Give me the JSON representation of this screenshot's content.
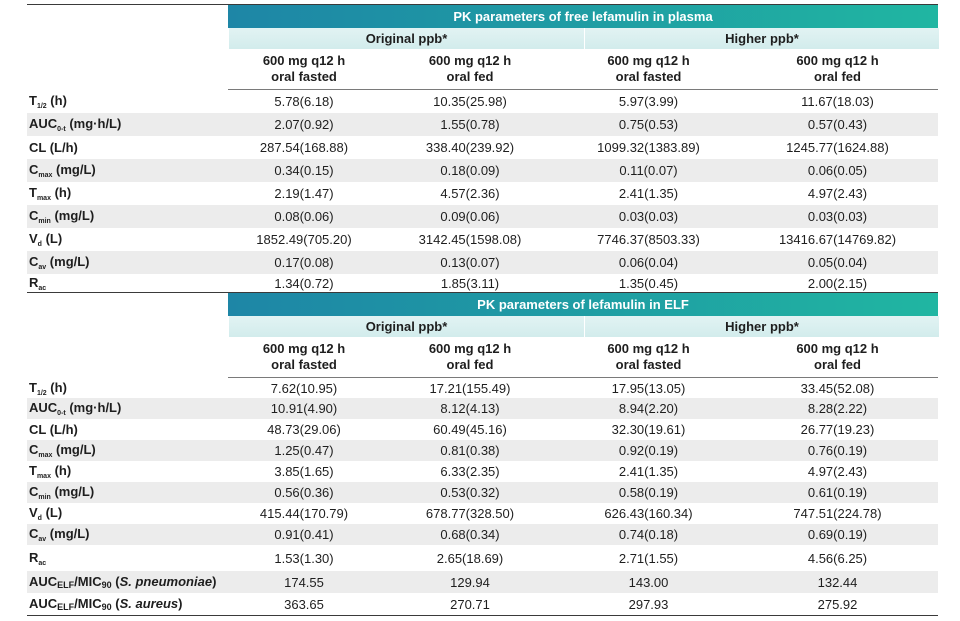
{
  "plasma": {
    "title": "PK parameters of free lefamulin in plasma",
    "group1": "Original ppb*",
    "group2": "Higher ppb*",
    "col1_l1": "600 mg q12 h",
    "col1_l2": "oral fasted",
    "col2_l1": "600 mg q12 h",
    "col2_l2": "oral fed",
    "col3_l1": "600 mg q12 h",
    "col3_l2": "oral fasted",
    "col4_l1": "600 mg q12 h",
    "col4_l2": "oral fed",
    "rows": [
      {
        "base": "T",
        "sub": "1/2",
        "unit": " (h)",
        "vals": [
          "5.78(6.18)",
          "10.35(25.98)",
          "5.97(3.99)",
          "11.67(18.03)"
        ]
      },
      {
        "base": "AUC",
        "sub": "0-t",
        "unit": " (mg·h/L)",
        "vals": [
          "2.07(0.92)",
          "1.55(0.78)",
          "0.75(0.53)",
          "0.57(0.43)"
        ]
      },
      {
        "base": "CL",
        "sub": "",
        "unit": " (L/h)",
        "vals": [
          "287.54(168.88)",
          "338.40(239.92)",
          "1099.32(1383.89)",
          "1245.77(1624.88)"
        ]
      },
      {
        "base": "C",
        "sub": "max",
        "unit": " (mg/L)",
        "vals": [
          "0.34(0.15)",
          "0.18(0.09)",
          "0.11(0.07)",
          "0.06(0.05)"
        ]
      },
      {
        "base": "T",
        "sub": "max",
        "unit": " (h)",
        "vals": [
          "2.19(1.47)",
          "4.57(2.36)",
          "2.41(1.35)",
          "4.97(2.43)"
        ]
      },
      {
        "base": "C",
        "sub": "min",
        "unit": " (mg/L)",
        "vals": [
          "0.08(0.06)",
          "0.09(0.06)",
          "0.03(0.03)",
          "0.03(0.03)"
        ]
      },
      {
        "base": "V",
        "sub": "d",
        "unit": " (L)",
        "vals": [
          "1852.49(705.20)",
          "3142.45(1598.08)",
          "7746.37(8503.33)",
          "13416.67(14769.82)"
        ]
      },
      {
        "base": "C",
        "sub": "av",
        "unit": " (mg/L)",
        "vals": [
          "0.17(0.08)",
          "0.13(0.07)",
          "0.06(0.04)",
          "0.05(0.04)"
        ]
      },
      {
        "base": "R",
        "sub": "ac",
        "unit": "",
        "vals": [
          "1.34(0.72)",
          "1.85(3.11)",
          "1.35(0.45)",
          "2.00(2.15)"
        ]
      }
    ]
  },
  "elf": {
    "title": "PK parameters of lefamulin in ELF",
    "group1": "Original ppb*",
    "group2": "Higher ppb*",
    "col1_l1": "600 mg q12 h",
    "col1_l2": "oral fasted",
    "col2_l1": "600 mg q12 h",
    "col2_l2": "oral fed",
    "col3_l1": "600 mg q12 h",
    "col3_l2": "oral fasted",
    "col4_l1": "600 mg q12 h",
    "col4_l2": "oral fed",
    "rows": [
      {
        "base": "T",
        "sub": "1/2",
        "unit": " (h)",
        "vals": [
          "7.62(10.95)",
          "17.21(155.49)",
          "17.95(13.05)",
          "33.45(52.08)"
        ]
      },
      {
        "base": "AUC",
        "sub": "0-t",
        "unit": " (mg·h/L)",
        "vals": [
          "10.91(4.90)",
          "8.12(4.13)",
          "8.94(2.20)",
          "8.28(2.22)"
        ]
      },
      {
        "base": "CL",
        "sub": "",
        "unit": " (L/h)",
        "vals": [
          "48.73(29.06)",
          "60.49(45.16)",
          "32.30(19.61)",
          "26.77(19.23)"
        ]
      },
      {
        "base": "C",
        "sub": "max",
        "unit": " (mg/L)",
        "vals": [
          "1.25(0.47)",
          "0.81(0.38)",
          "0.92(0.19)",
          "0.76(0.19)"
        ]
      },
      {
        "base": "T",
        "sub": "max",
        "unit": " (h)",
        "vals": [
          "3.85(1.65)",
          "6.33(2.35)",
          "2.41(1.35)",
          "4.97(2.43)"
        ]
      },
      {
        "base": "C",
        "sub": "min",
        "unit": " (mg/L)",
        "vals": [
          "0.56(0.36)",
          "0.53(0.32)",
          "0.58(0.19)",
          "0.61(0.19)"
        ]
      },
      {
        "base": "V",
        "sub": "d",
        "unit": " (L)",
        "vals": [
          "415.44(170.79)",
          "678.77(328.50)",
          "626.43(160.34)",
          "747.51(224.78)"
        ]
      },
      {
        "base": "C",
        "sub": "av",
        "unit": " (mg/L)",
        "vals": [
          "0.91(0.41)",
          "0.68(0.34)",
          "0.74(0.18)",
          "0.69(0.19)"
        ]
      },
      {
        "base": "R",
        "sub": "ac",
        "unit": "",
        "vals": [
          "1.53(1.30)",
          "2.65(18.69)",
          "2.71(1.55)",
          "4.56(6.25)"
        ]
      }
    ],
    "mic_rows": [
      {
        "base": "AUC",
        "sub": "ELF",
        "mid": "/MIC",
        "sub2": "90",
        "open": " (",
        "species": "S. pneumoniae",
        "close": ")",
        "vals": [
          "174.55",
          "129.94",
          "143.00",
          "132.44"
        ]
      },
      {
        "base": "AUC",
        "sub": "ELF",
        "mid": "/MIC",
        "sub2": "90",
        "open": " (",
        "species": "S. aureus",
        "close": ")",
        "vals": [
          "363.65",
          "270.71",
          "297.93",
          "275.92"
        ]
      }
    ]
  },
  "colors": {
    "banner_start": "#1e86a6",
    "banner_end": "#20b6a2",
    "group_band": "#d9efef",
    "row_shade": "#ececec"
  }
}
